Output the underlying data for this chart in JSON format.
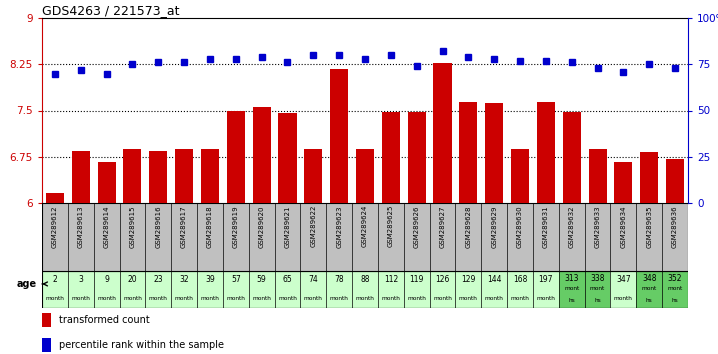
{
  "title": "GDS4263 / 221573_at",
  "samples": [
    "GSM289612",
    "GSM289613",
    "GSM289614",
    "GSM289615",
    "GSM289616",
    "GSM289617",
    "GSM289618",
    "GSM289619",
    "GSM289620",
    "GSM289621",
    "GSM289622",
    "GSM289623",
    "GSM289624",
    "GSM289625",
    "GSM289626",
    "GSM289627",
    "GSM289628",
    "GSM289629",
    "GSM289630",
    "GSM289631",
    "GSM289632",
    "GSM289633",
    "GSM289634",
    "GSM289635",
    "GSM289636"
  ],
  "bar_values": [
    6.16,
    6.84,
    6.66,
    6.88,
    6.84,
    6.87,
    6.88,
    7.49,
    7.56,
    7.46,
    6.87,
    8.17,
    6.88,
    7.47,
    7.47,
    8.27,
    7.64,
    7.62,
    6.88,
    7.64,
    7.48,
    6.88,
    6.66,
    6.83,
    6.71
  ],
  "pct_values": [
    70,
    72,
    70,
    75,
    76,
    76,
    78,
    78,
    79,
    76,
    80,
    80,
    78,
    80,
    74,
    82,
    79,
    78,
    77,
    77,
    76,
    73,
    71,
    75,
    73
  ],
  "age_values": [
    "2",
    "3",
    "9",
    "20",
    "23",
    "32",
    "39",
    "57",
    "59",
    "65",
    "74",
    "78",
    "88",
    "112",
    "119",
    "126",
    "129",
    "144",
    "168",
    "197",
    "313",
    "338",
    "347",
    "348",
    "352"
  ],
  "age_units": [
    "month",
    "month",
    "month",
    "month",
    "month",
    "month",
    "month",
    "month",
    "month",
    "month",
    "month",
    "month",
    "month",
    "month",
    "month",
    "month",
    "month",
    "month",
    "month",
    "month",
    "months",
    "months",
    "month",
    "months",
    "months"
  ],
  "age_subunits": [
    "",
    "",
    "",
    "",
    "",
    "",
    "",
    "",
    "",
    "",
    "",
    "",
    "",
    "",
    "",
    "",
    "",
    "",
    "",
    "",
    "hs",
    "hs",
    "",
    "hs",
    "hs"
  ],
  "age_bg": [
    "#ccffcc",
    "#ccffcc",
    "#ccffcc",
    "#ccffcc",
    "#ccffcc",
    "#ccffcc",
    "#ccffcc",
    "#ccffcc",
    "#ccffcc",
    "#ccffcc",
    "#ccffcc",
    "#ccffcc",
    "#ccffcc",
    "#ccffcc",
    "#ccffcc",
    "#ccffcc",
    "#ccffcc",
    "#ccffcc",
    "#ccffcc",
    "#ccffcc",
    "#66cc66",
    "#66cc66",
    "#ccffcc",
    "#66cc66",
    "#66cc66"
  ],
  "ylim_left": [
    6.0,
    9.0
  ],
  "ylim_right": [
    0,
    100
  ],
  "yticks_left": [
    6.0,
    6.75,
    7.5,
    8.25,
    9.0
  ],
  "ytick_labels_left": [
    "6",
    "6.75",
    "7.5",
    "8.25",
    "9"
  ],
  "yticks_right": [
    0,
    25,
    50,
    75,
    100
  ],
  "ytick_labels_right": [
    "0",
    "25",
    "50",
    "75",
    "100%"
  ],
  "bar_color": "#cc0000",
  "dot_color": "#0000cc",
  "bg_color": "#ffffff",
  "label_transformed": "transformed count",
  "label_percentile": "percentile rank within the sample",
  "sample_label_bg": "#c0c0c0"
}
